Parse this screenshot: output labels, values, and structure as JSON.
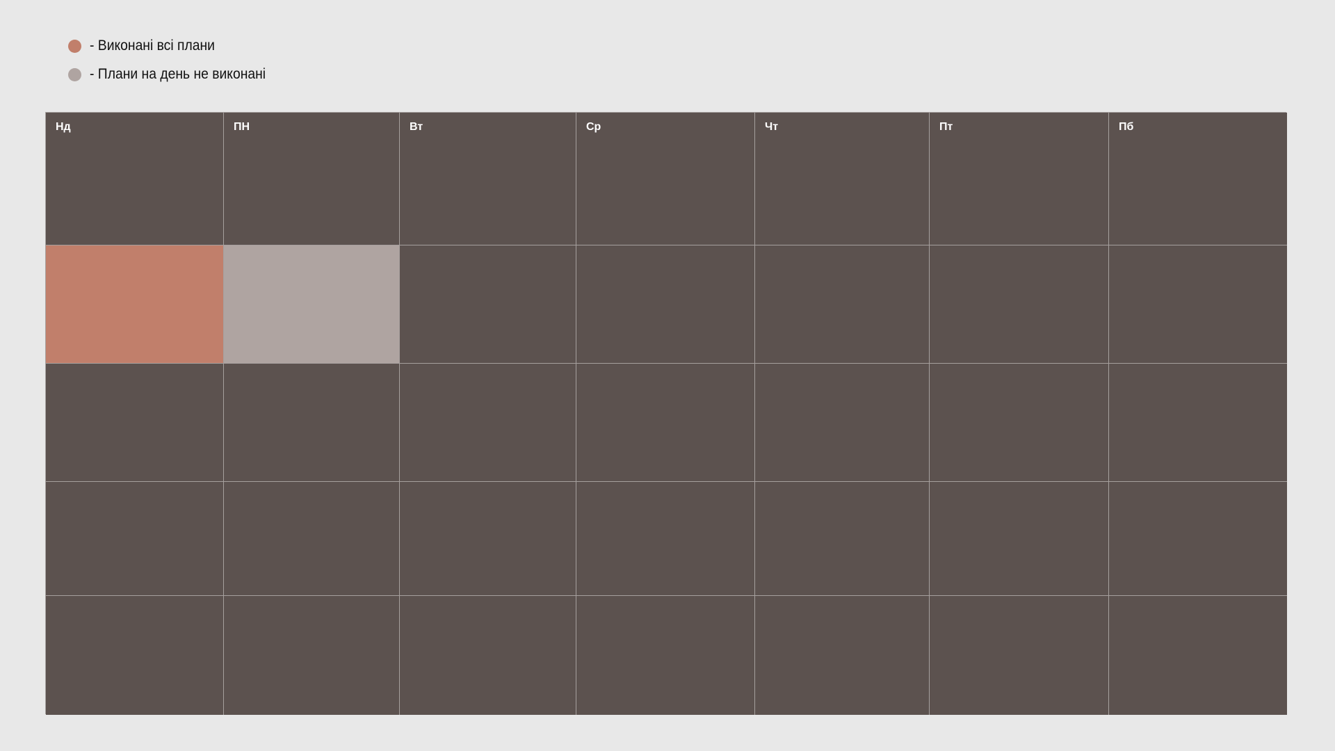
{
  "legend": {
    "items": [
      {
        "label": "- Виконані всі плани",
        "color": "#c17f6b"
      },
      {
        "label": "- Плани на день не виконані",
        "color": "#afa4a1"
      }
    ]
  },
  "calendar": {
    "days": [
      "Нд",
      "ПН",
      "Вт",
      "Ср",
      "Чт",
      "Пт",
      "Пб"
    ],
    "cell_color": "#5c524f",
    "weeks": [
      [
        "completed",
        "not-completed",
        "",
        "",
        "",
        "",
        ""
      ],
      [
        "",
        "",
        "",
        "",
        "",
        "",
        ""
      ],
      [
        "",
        "",
        "",
        "",
        "",
        "",
        ""
      ],
      [
        "",
        "",
        "",
        "",
        "",
        "",
        ""
      ]
    ],
    "status_colors": {
      "completed": "#c17f6b",
      "not-completed": "#afa4a1"
    }
  }
}
